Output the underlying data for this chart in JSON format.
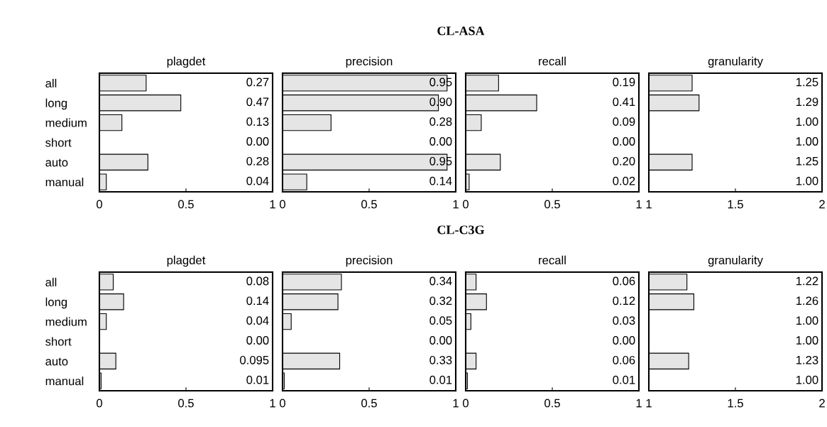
{
  "chart_data": [
    {
      "type": "bar",
      "orientation": "horizontal",
      "title": "plagdet",
      "annotations": [
        "CL-ASA"
      ],
      "categories": [
        "all",
        "long",
        "medium",
        "short",
        "auto",
        "manual"
      ],
      "values": [
        0.27,
        0.47,
        0.13,
        0.0,
        0.28,
        0.04
      ],
      "value_labels": [
        "0.27",
        "0.47",
        "0.13",
        "0.00",
        "0.28",
        "0.04"
      ],
      "color": "#e5e5e5",
      "xlim": [
        0,
        1
      ],
      "xticks": [
        0,
        0.5,
        1
      ],
      "grid": false
    },
    {
      "type": "bar",
      "orientation": "horizontal",
      "title": "precision",
      "categories": [
        null,
        null,
        null,
        null,
        null,
        null
      ],
      "values": [
        0.95,
        0.9,
        0.28,
        0.0,
        0.95,
        0.14
      ],
      "value_labels": [
        "0.95",
        "0.90",
        "0.28",
        "0.00",
        "0.95",
        "0.14"
      ],
      "color": "#e5e5e5",
      "xlim": [
        0,
        1
      ],
      "xticks": [
        0,
        0.5,
        1
      ],
      "tick_labels": "x",
      "grid": false
    },
    {
      "type": "bar",
      "orientation": "horizontal",
      "title": "recall",
      "categories": [
        null,
        null,
        null,
        null,
        null,
        null
      ],
      "values": [
        0.19,
        0.41,
        0.09,
        0.0,
        0.2,
        0.02
      ],
      "value_labels": [
        "0.19",
        "0.41",
        "0.09",
        "0.00",
        "0.20",
        "0.02"
      ],
      "color": "#e5e5e5",
      "xlim": [
        0,
        1
      ],
      "xticks": [
        0,
        0.5,
        1
      ],
      "tick_labels": "x",
      "grid": false
    },
    {
      "type": "bar",
      "orientation": "horizontal",
      "title": "granularity",
      "categories": [
        null,
        null,
        null,
        null,
        null,
        null
      ],
      "values": [
        1.25,
        1.29,
        1.0,
        1.0,
        1.25,
        1.0
      ],
      "value_labels": [
        "1.25",
        "1.29",
        "1.00",
        "1.00",
        "1.25",
        "1.00"
      ],
      "color": "#e5e5e5",
      "xlim": [
        1,
        2
      ],
      "xticks": [
        1,
        1.5,
        2
      ],
      "tick_labels": "x",
      "grid": false
    },
    {
      "type": "bar",
      "orientation": "horizontal",
      "title": "plagdet",
      "annotations": [
        "CL-C3G"
      ],
      "categories": [
        "all",
        "long",
        "medium",
        "short",
        "auto",
        "manual"
      ],
      "values": [
        0.08,
        0.14,
        0.04,
        0.0,
        0.095,
        0.01
      ],
      "value_labels": [
        "0.08",
        "0.14",
        "0.04",
        "0.00",
        "0.095",
        "0.01"
      ],
      "color": "#e5e5e5",
      "xlim": [
        0,
        1
      ],
      "xticks": [
        0,
        0.5,
        1
      ],
      "grid": false
    },
    {
      "type": "bar",
      "orientation": "horizontal",
      "title": "precision",
      "categories": [
        null,
        null,
        null,
        null,
        null,
        null
      ],
      "values": [
        0.34,
        0.32,
        0.05,
        0.0,
        0.33,
        0.01
      ],
      "value_labels": [
        "0.34",
        "0.32",
        "0.05",
        "0.00",
        "0.33",
        "0.01"
      ],
      "color": "#e5e5e5",
      "xlim": [
        0,
        1
      ],
      "xticks": [
        0,
        0.5,
        1
      ],
      "tick_labels": "x",
      "grid": false
    },
    {
      "type": "bar",
      "orientation": "horizontal",
      "title": "recall",
      "categories": [
        null,
        null,
        null,
        null,
        null,
        null
      ],
      "values": [
        0.06,
        0.12,
        0.03,
        0.0,
        0.06,
        0.01
      ],
      "value_labels": [
        "0.06",
        "0.12",
        "0.03",
        "0.00",
        "0.06",
        "0.01"
      ],
      "color": "#e5e5e5",
      "xlim": [
        0,
        1
      ],
      "xticks": [
        0,
        0.5,
        1
      ],
      "tick_labels": "x",
      "grid": false
    },
    {
      "type": "bar",
      "orientation": "horizontal",
      "title": "granularity",
      "categories": [
        null,
        null,
        null,
        null,
        null,
        null
      ],
      "values": [
        1.22,
        1.26,
        1.0,
        1.0,
        1.23,
        1.0
      ],
      "value_labels": [
        "1.22",
        "1.26",
        "1.00",
        "1.00",
        "1.23",
        "1.00"
      ],
      "color": "#e5e5e5",
      "xlim": [
        1,
        2
      ],
      "xticks": [
        1,
        1.5,
        2
      ],
      "tick_labels": "x",
      "grid": false
    }
  ]
}
